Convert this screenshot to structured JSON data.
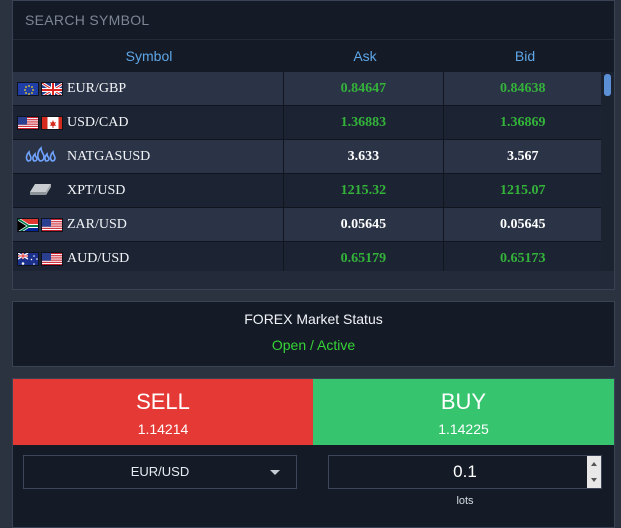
{
  "search": {
    "placeholder": "SEARCH SYMBOL"
  },
  "table": {
    "headers": {
      "symbol": "Symbol",
      "ask": "Ask",
      "bid": "Bid"
    },
    "rows": [
      {
        "symbol": "EUR/GBP",
        "ask": "0.84647",
        "bid": "0.84638",
        "ask_color": "green",
        "bid_color": "green",
        "flags": [
          "eu",
          "gb"
        ]
      },
      {
        "symbol": "USD/CAD",
        "ask": "1.36883",
        "bid": "1.36869",
        "ask_color": "green",
        "bid_color": "green",
        "flags": [
          "us",
          "ca"
        ]
      },
      {
        "symbol": "NATGASUSD",
        "ask": "3.633",
        "bid": "3.567",
        "ask_color": "white",
        "bid_color": "white",
        "flags": [
          "gas-flame-icon"
        ]
      },
      {
        "symbol": "XPT/USD",
        "ask": "1215.32",
        "bid": "1215.07",
        "ask_color": "green",
        "bid_color": "green",
        "flags": [
          "platinum-bar-icon"
        ]
      },
      {
        "symbol": "ZAR/USD",
        "ask": "0.05645",
        "bid": "0.05645",
        "ask_color": "white",
        "bid_color": "white",
        "flags": [
          "za",
          "us"
        ]
      },
      {
        "symbol": "AUD/USD",
        "ask": "0.65179",
        "bid": "0.65173",
        "ask_color": "green",
        "bid_color": "green",
        "flags": [
          "au",
          "us"
        ]
      }
    ]
  },
  "status": {
    "title": "FOREX Market Status",
    "value": "Open / Active"
  },
  "trade": {
    "sell_label": "SELL",
    "sell_price": "1.14214",
    "buy_label": "BUY",
    "buy_price": "1.14225",
    "symbol_selected": "EUR/USD",
    "lots_value": "0.1",
    "lots_label": "lots"
  },
  "colors": {
    "sell": "#e53935",
    "buy": "#36c46f",
    "up": "#34b33a",
    "header": "#5fa6e6",
    "status_ok": "#36d436"
  }
}
